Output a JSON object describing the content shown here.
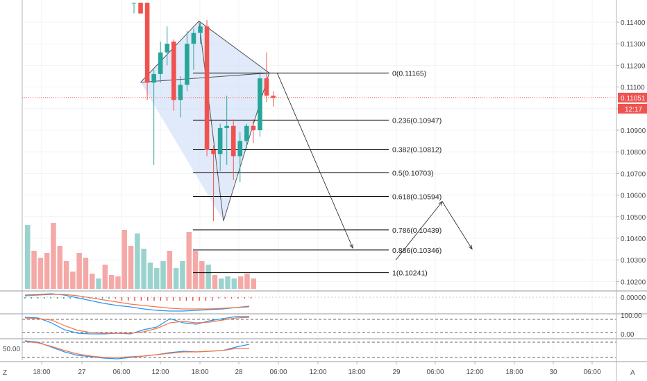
{
  "colors": {
    "up": "#26a69a",
    "down": "#ef5350",
    "vol_up": "#9ad3ce",
    "vol_down": "#f4a9a7",
    "grid": "#f0f3f5",
    "axis": "#b2b5be",
    "price_line": "#ef5350",
    "pattern_fill": "#c9d8f5",
    "pattern_line": "#555555",
    "fib_line": "#000000",
    "ind_blue": "#2196f3",
    "ind_orange": "#ff7043"
  },
  "price_axis": {
    "ticks": [
      "0.11400",
      "0.11300",
      "0.11200",
      "0.11100",
      "0.11000",
      "0.10900",
      "0.10800",
      "0.10700",
      "0.10600",
      "0.10500",
      "0.10400",
      "0.10300",
      "0.10200"
    ],
    "last_price": "0.11051",
    "countdown": "12:17"
  },
  "indicator_axes": {
    "macd": [
      "0.00000"
    ],
    "stoch": [
      "100.00",
      "0.00"
    ],
    "rsi_left": "50.00"
  },
  "time_axis": [
    "18:00",
    "27",
    "06:00",
    "12:00",
    "18:00",
    "28",
    "06:00",
    "12:00",
    "18:00",
    "29",
    "06:00",
    "12:00",
    "18:00",
    "30",
    "06:00"
  ],
  "corner_labels": {
    "left": "Z",
    "right": "A"
  },
  "chart_data": {
    "type": "candlestick",
    "price_range": [
      0.1018,
      0.1146
    ],
    "candles": [
      {
        "o": 0.1149,
        "h": 0.1149,
        "l": 0.1144,
        "c": 0.1149
      },
      {
        "o": 0.1149,
        "h": 0.1149,
        "l": 0.1144,
        "c": 0.1144
      },
      {
        "o": 0.1149,
        "h": 0.1149,
        "l": 0.1104,
        "c": 0.1112
      },
      {
        "o": 0.1112,
        "h": 0.1118,
        "l": 0.1074,
        "c": 0.1116
      },
      {
        "o": 0.1116,
        "h": 0.1131,
        "l": 0.1112,
        "c": 0.1126
      },
      {
        "o": 0.1126,
        "h": 0.1138,
        "l": 0.112,
        "c": 0.113
      },
      {
        "o": 0.1131,
        "h": 0.1132,
        "l": 0.1099,
        "c": 0.1104
      },
      {
        "o": 0.1104,
        "h": 0.1115,
        "l": 0.1096,
        "c": 0.1111
      },
      {
        "o": 0.1111,
        "h": 0.1136,
        "l": 0.1108,
        "c": 0.113
      },
      {
        "o": 0.113,
        "h": 0.1137,
        "l": 0.1118,
        "c": 0.1135
      },
      {
        "o": 0.1135,
        "h": 0.114,
        "l": 0.113,
        "c": 0.1138
      },
      {
        "o": 0.1138,
        "h": 0.1141,
        "l": 0.1078,
        "c": 0.1081
      },
      {
        "o": 0.1081,
        "h": 0.1083,
        "l": 0.1048,
        "c": 0.1079
      },
      {
        "o": 0.1079,
        "h": 0.1093,
        "l": 0.1071,
        "c": 0.1091
      },
      {
        "o": 0.1091,
        "h": 0.1106,
        "l": 0.1074,
        "c": 0.1092
      },
      {
        "o": 0.1092,
        "h": 0.1095,
        "l": 0.1067,
        "c": 0.1078
      },
      {
        "o": 0.1078,
        "h": 0.1089,
        "l": 0.1066,
        "c": 0.1085
      },
      {
        "o": 0.1085,
        "h": 0.1093,
        "l": 0.1082,
        "c": 0.1092
      },
      {
        "o": 0.1092,
        "h": 0.1095,
        "l": 0.1084,
        "c": 0.109
      },
      {
        "o": 0.109,
        "h": 0.1117,
        "l": 0.1087,
        "c": 0.1114
      },
      {
        "o": 0.1114,
        "h": 0.1126,
        "l": 0.1103,
        "c": 0.1106
      },
      {
        "o": 0.1106,
        "h": 0.1108,
        "l": 0.1101,
        "c": 0.1105
      }
    ],
    "volume": [
      {
        "v": 0.92,
        "up": true
      },
      {
        "v": 0.55,
        "up": false
      },
      {
        "v": 0.45,
        "up": false
      },
      {
        "v": 0.52,
        "up": false
      },
      {
        "v": 0.95,
        "up": false
      },
      {
        "v": 0.62,
        "up": false
      },
      {
        "v": 0.4,
        "up": false
      },
      {
        "v": 0.25,
        "up": false
      },
      {
        "v": 0.52,
        "up": false
      },
      {
        "v": 0.45,
        "up": false
      },
      {
        "v": 0.22,
        "up": false
      },
      {
        "v": 0.15,
        "up": true
      },
      {
        "v": 0.35,
        "up": false
      },
      {
        "v": 0.2,
        "up": false
      },
      {
        "v": 0.18,
        "up": false
      },
      {
        "v": 0.85,
        "up": false
      },
      {
        "v": 0.62,
        "up": false
      },
      {
        "v": 0.8,
        "up": true
      },
      {
        "v": 0.58,
        "up": true
      },
      {
        "v": 0.38,
        "up": true
      },
      {
        "v": 0.3,
        "up": true
      },
      {
        "v": 0.4,
        "up": true
      },
      {
        "v": 0.55,
        "up": false
      },
      {
        "v": 0.3,
        "up": true
      },
      {
        "v": 0.4,
        "up": true
      },
      {
        "v": 0.82,
        "up": false
      },
      {
        "v": 0.55,
        "up": false
      },
      {
        "v": 0.4,
        "up": false
      },
      {
        "v": 0.35,
        "up": true
      },
      {
        "v": 0.2,
        "up": false
      },
      {
        "v": 0.15,
        "up": true
      },
      {
        "v": 0.18,
        "up": true
      },
      {
        "v": 0.15,
        "up": true
      },
      {
        "v": 0.18,
        "up": false
      },
      {
        "v": 0.22,
        "up": false
      },
      {
        "v": 0.15,
        "up": false
      }
    ],
    "pattern_points": [
      {
        "i": 1.0,
        "p": 0.11122
      },
      {
        "i": 9.8,
        "p": 0.11405
      },
      {
        "i": 13.5,
        "p": 0.1048
      },
      {
        "i": 20.4,
        "p": 0.11165
      },
      {
        "i": 9.8,
        "p": 0.11405
      }
    ],
    "fib_levels": [
      {
        "label": "0(0.11165)",
        "p": 0.11165
      },
      {
        "label": "0.236(0.10947)",
        "p": 0.10947
      },
      {
        "label": "0.382(0.10812)",
        "p": 0.10812
      },
      {
        "label": "0.5(0.10703)",
        "p": 0.10703
      },
      {
        "label": "0.618(0.10594)",
        "p": 0.10594
      },
      {
        "label": "0.786(0.10439)",
        "p": 0.10439
      },
      {
        "label": "0.886(0.10346)",
        "p": 0.10346
      },
      {
        "label": "1(0.10241)",
        "p": 0.10241
      }
    ],
    "projection_arrows": [
      {
        "from": {
          "i": 21.6,
          "p": 0.11165
        },
        "to": {
          "i": 33.0,
          "p": 0.10355
        }
      },
      {
        "from": {
          "i": 39.5,
          "p": 0.103
        },
        "to": {
          "i": 46.5,
          "p": 0.1057
        }
      },
      {
        "from": {
          "i": 46.5,
          "p": 0.1057
        },
        "to": {
          "i": 51.0,
          "p": 0.1035
        }
      }
    ]
  }
}
